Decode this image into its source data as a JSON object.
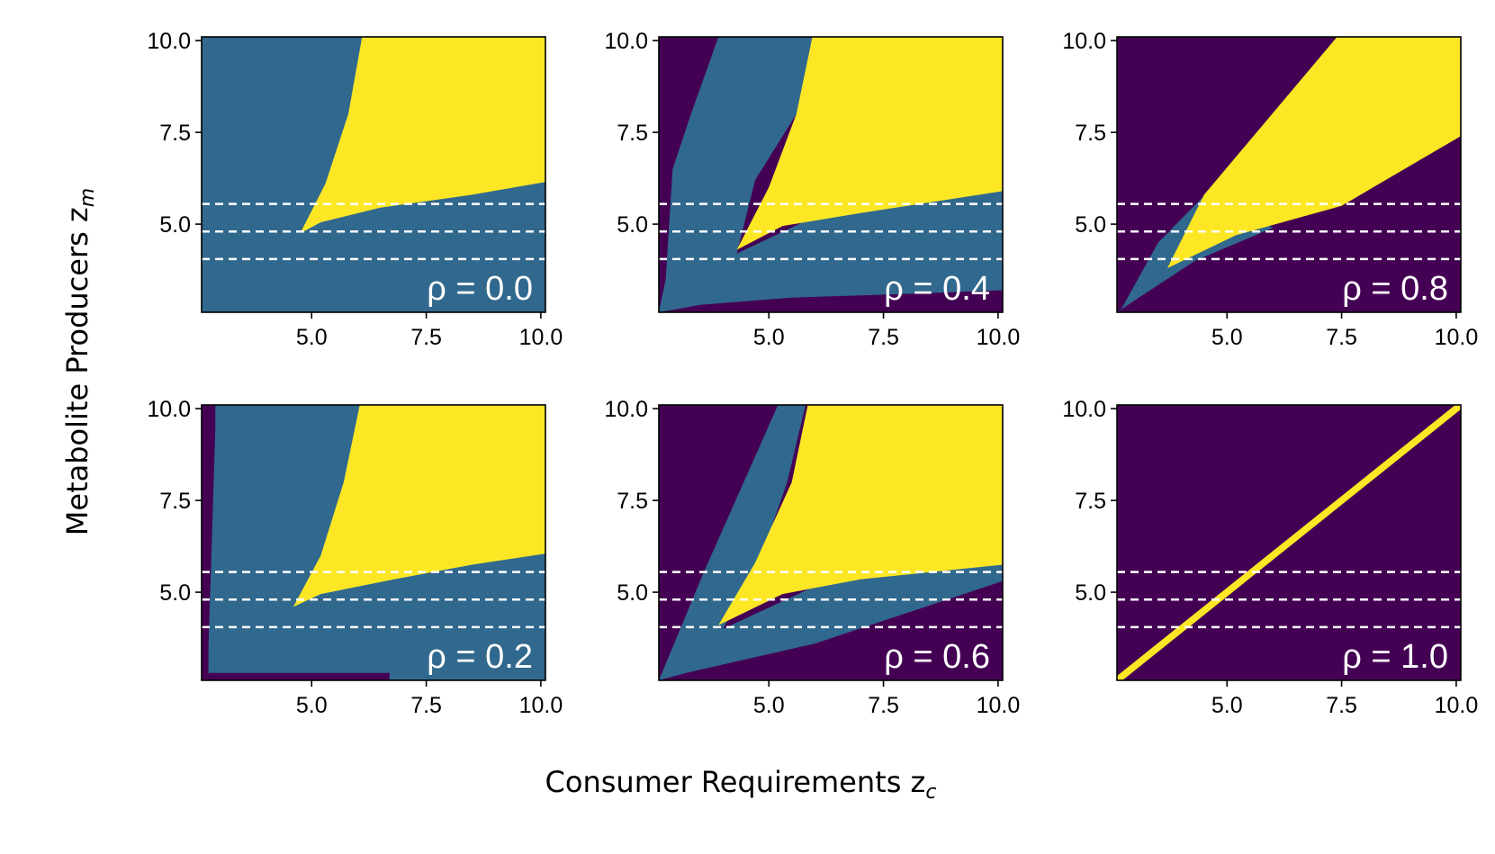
{
  "figure": {
    "xlabel": "Consumer Requirements z",
    "xlabel_sub": "c",
    "ylabel": "Metabolite Producers z",
    "ylabel_sub": "m"
  },
  "colors": {
    "purple": "#440154",
    "teal": "#31688e",
    "yellow": "#fde725",
    "dash": "#ffffff"
  },
  "chart_data": [
    {
      "type": "heatmap",
      "label": "ρ = 0.0",
      "rho": 0.0,
      "xlim": [
        2.6,
        10.1
      ],
      "ylim": [
        2.6,
        10.1
      ],
      "xticks": [
        "5.0",
        "7.5",
        "10.0"
      ],
      "yticks": [
        "5.0",
        "7.5",
        "10.0"
      ],
      "dashed_lines_y": [
        4.05,
        4.8,
        5.55
      ],
      "regions": [
        {
          "color": "teal",
          "polygon": [
            [
              2.6,
              2.6
            ],
            [
              10.1,
              2.6
            ],
            [
              10.1,
              10.1
            ],
            [
              2.6,
              10.1
            ]
          ]
        },
        {
          "color": "yellow",
          "polygon": [
            [
              4.75,
              4.75
            ],
            [
              5.2,
              5.05
            ],
            [
              6.5,
              5.45
            ],
            [
              8.5,
              5.8
            ],
            [
              10.1,
              6.15
            ],
            [
              10.1,
              10.1
            ],
            [
              6.1,
              10.1
            ],
            [
              5.8,
              8.0
            ],
            [
              5.3,
              6.1
            ]
          ]
        }
      ]
    },
    {
      "type": "heatmap",
      "label": "ρ = 0.4",
      "rho": 0.4,
      "xlim": [
        2.6,
        10.1
      ],
      "ylim": [
        2.6,
        10.1
      ],
      "xticks": [
        "5.0",
        "7.5",
        "10.0"
      ],
      "yticks": [
        "5.0",
        "7.5",
        "10.0"
      ],
      "dashed_lines_y": [
        4.05,
        4.8,
        5.55
      ],
      "regions": [
        {
          "color": "purple",
          "polygon": [
            [
              2.6,
              2.6
            ],
            [
              10.1,
              2.6
            ],
            [
              10.1,
              10.1
            ],
            [
              2.6,
              10.1
            ]
          ]
        },
        {
          "color": "teal",
          "polygon": [
            [
              2.6,
              2.6
            ],
            [
              3.5,
              2.8
            ],
            [
              5.5,
              3.0
            ],
            [
              8.0,
              3.1
            ],
            [
              10.1,
              3.2
            ],
            [
              10.1,
              6.0
            ],
            [
              6.5,
              5.5
            ],
            [
              4.3,
              4.2
            ],
            [
              4.7,
              6.2
            ],
            [
              5.6,
              8.0
            ],
            [
              6.1,
              10.1
            ],
            [
              3.9,
              10.1
            ],
            [
              3.3,
              8.0
            ],
            [
              2.9,
              6.5
            ],
            [
              2.75,
              3.5
            ]
          ]
        },
        {
          "color": "yellow",
          "polygon": [
            [
              4.3,
              4.3
            ],
            [
              5.3,
              4.95
            ],
            [
              7.0,
              5.3
            ],
            [
              10.1,
              5.9
            ],
            [
              10.1,
              10.1
            ],
            [
              5.95,
              10.1
            ],
            [
              5.6,
              8.0
            ],
            [
              5.0,
              6.0
            ]
          ]
        }
      ]
    },
    {
      "type": "heatmap",
      "label": "ρ = 0.8",
      "rho": 0.8,
      "xlim": [
        2.6,
        10.1
      ],
      "ylim": [
        2.6,
        10.1
      ],
      "xticks": [
        "5.0",
        "7.5",
        "10.0"
      ],
      "yticks": [
        "5.0",
        "7.5",
        "10.0"
      ],
      "dashed_lines_y": [
        4.05,
        4.8,
        5.55
      ],
      "regions": [
        {
          "color": "purple",
          "polygon": [
            [
              2.6,
              2.6
            ],
            [
              10.1,
              2.6
            ],
            [
              10.1,
              10.1
            ],
            [
              2.6,
              10.1
            ]
          ]
        },
        {
          "color": "teal",
          "polygon": [
            [
              2.6,
              2.6
            ],
            [
              3.2,
              3.1
            ],
            [
              4.3,
              4.0
            ],
            [
              6.0,
              4.9
            ],
            [
              4.6,
              5.9
            ],
            [
              3.5,
              4.5
            ],
            [
              2.7,
              2.7
            ]
          ]
        },
        {
          "color": "yellow",
          "polygon": [
            [
              3.7,
              3.8
            ],
            [
              5.2,
              4.7
            ],
            [
              7.5,
              5.5
            ],
            [
              10.1,
              7.4
            ],
            [
              10.1,
              10.1
            ],
            [
              7.4,
              10.1
            ],
            [
              4.5,
              5.8
            ]
          ]
        }
      ]
    },
    {
      "type": "heatmap",
      "label": "ρ = 0.2",
      "rho": 0.2,
      "xlim": [
        2.6,
        10.1
      ],
      "ylim": [
        2.6,
        10.1
      ],
      "xticks": [
        "5.0",
        "7.5",
        "10.0"
      ],
      "yticks": [
        "5.0",
        "7.5",
        "10.0"
      ],
      "dashed_lines_y": [
        4.05,
        4.8,
        5.55
      ],
      "regions": [
        {
          "color": "purple",
          "polygon": [
            [
              2.6,
              2.6
            ],
            [
              10.1,
              2.6
            ],
            [
              10.1,
              10.1
            ],
            [
              2.6,
              10.1
            ]
          ]
        },
        {
          "color": "teal",
          "polygon": [
            [
              2.75,
              2.6
            ],
            [
              2.75,
              2.8
            ],
            [
              6.7,
              2.8
            ],
            [
              6.7,
              2.6
            ],
            [
              10.1,
              2.6
            ],
            [
              10.1,
              10.1
            ],
            [
              2.9,
              10.1
            ],
            [
              2.9,
              9.5
            ],
            [
              2.75,
              3.5
            ]
          ]
        },
        {
          "color": "yellow",
          "polygon": [
            [
              4.6,
              4.6
            ],
            [
              5.2,
              4.95
            ],
            [
              6.8,
              5.35
            ],
            [
              8.5,
              5.75
            ],
            [
              10.1,
              6.05
            ],
            [
              10.1,
              10.1
            ],
            [
              6.05,
              10.1
            ],
            [
              5.7,
              8.0
            ],
            [
              5.2,
              6.0
            ]
          ]
        }
      ]
    },
    {
      "type": "heatmap",
      "label": "ρ = 0.6",
      "rho": 0.6,
      "xlim": [
        2.6,
        10.1
      ],
      "ylim": [
        2.6,
        10.1
      ],
      "xticks": [
        "5.0",
        "7.5",
        "10.0"
      ],
      "yticks": [
        "5.0",
        "7.5",
        "10.0"
      ],
      "dashed_lines_y": [
        4.05,
        4.8,
        5.55
      ],
      "regions": [
        {
          "color": "purple",
          "polygon": [
            [
              2.6,
              2.6
            ],
            [
              10.1,
              2.6
            ],
            [
              10.1,
              10.1
            ],
            [
              2.6,
              10.1
            ]
          ]
        },
        {
          "color": "teal",
          "polygon": [
            [
              2.6,
              2.6
            ],
            [
              3.2,
              2.8
            ],
            [
              6.0,
              3.6
            ],
            [
              10.1,
              5.3
            ],
            [
              10.1,
              5.85
            ],
            [
              6.5,
              5.45
            ],
            [
              4.0,
              4.0
            ],
            [
              4.9,
              6.2
            ],
            [
              5.4,
              8.0
            ],
            [
              5.8,
              10.1
            ],
            [
              5.2,
              10.1
            ],
            [
              3.6,
              5.6
            ]
          ]
        },
        {
          "color": "yellow",
          "polygon": [
            [
              3.9,
              4.1
            ],
            [
              5.3,
              4.95
            ],
            [
              7.0,
              5.35
            ],
            [
              10.1,
              5.75
            ],
            [
              10.1,
              10.1
            ],
            [
              5.85,
              10.1
            ],
            [
              5.5,
              8.0
            ],
            [
              4.7,
              5.8
            ]
          ]
        }
      ]
    },
    {
      "type": "heatmap",
      "label": "ρ = 1.0",
      "rho": 1.0,
      "xlim": [
        2.6,
        10.1
      ],
      "ylim": [
        2.6,
        10.1
      ],
      "xticks": [
        "5.0",
        "7.5",
        "10.0"
      ],
      "yticks": [
        "5.0",
        "7.5",
        "10.0"
      ],
      "dashed_lines_y": [
        4.05,
        4.8,
        5.55
      ],
      "regions": [
        {
          "color": "purple",
          "polygon": [
            [
              2.6,
              2.6
            ],
            [
              10.1,
              2.6
            ],
            [
              10.1,
              10.1
            ],
            [
              2.6,
              10.1
            ]
          ]
        },
        {
          "color": "yellow",
          "polygon": [
            [
              2.6,
              2.6
            ],
            [
              2.72,
              2.6
            ],
            [
              10.1,
              9.98
            ],
            [
              10.1,
              10.1
            ],
            [
              9.98,
              10.1
            ],
            [
              2.6,
              2.72
            ]
          ]
        }
      ]
    }
  ]
}
